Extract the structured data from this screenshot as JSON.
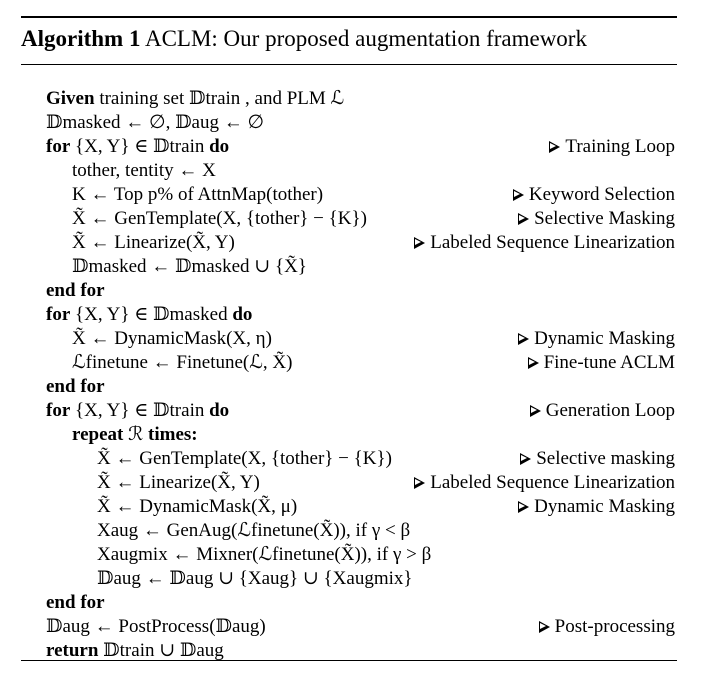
{
  "algorithm": {
    "label": "Algorithm 1",
    "title": "ACLM: Our proposed augmentation framework"
  },
  "lines": [
    {
      "code": "Given training set 𝔻train , and PLM ℒ",
      "comment": ""
    },
    {
      "code": "𝔻masked ← ∅, 𝔻aug ← ∅",
      "comment": ""
    },
    {
      "code": "for {X, Y} ∈ 𝔻train do",
      "comment": "Training Loop"
    },
    {
      "code": "tother, tentity ← X",
      "comment": ""
    },
    {
      "code": "K ← Top p% of AttnMap(tother)",
      "comment": "Keyword Selection"
    },
    {
      "code": "X̃ ← GenTemplate(X, {tother} − {K})",
      "comment": "Selective Masking"
    },
    {
      "code": "X̃ ← Linearize(X̃, Y)",
      "comment": "Labeled Sequence Linearization"
    },
    {
      "code": "𝔻masked ← 𝔻masked ∪ {X̃}",
      "comment": ""
    },
    {
      "code": "end for",
      "comment": ""
    },
    {
      "code": "for {X, Y} ∈ 𝔻masked do",
      "comment": ""
    },
    {
      "code": "X̃ ← DynamicMask(X, η)",
      "comment": "Dynamic Masking"
    },
    {
      "code": "ℒfinetune ← Finetune(ℒ, X̃)",
      "comment": "Fine-tune ACLM"
    },
    {
      "code": "end for",
      "comment": ""
    },
    {
      "code": "for {X, Y} ∈ 𝔻train do",
      "comment": "Generation Loop"
    },
    {
      "code": "repeat ℛ times:",
      "comment": ""
    },
    {
      "code": "X̃ ← GenTemplate(X, {tother} − {K})",
      "comment": "Selective masking"
    },
    {
      "code": "X̃ ← Linearize(X̃, Y)",
      "comment": "Labeled Sequence Linearization"
    },
    {
      "code": "X̃ ← DynamicMask(X̃, μ)",
      "comment": "Dynamic Masking"
    },
    {
      "code": "Xaug ← GenAug(ℒfinetune(X̃)), if γ < β",
      "comment": ""
    },
    {
      "code": "Xaugmix ← Mixner(ℒfinetune(X̃)), if γ > β",
      "comment": ""
    },
    {
      "code": "𝔻aug ← 𝔻aug ∪ {Xaug} ∪ {Xaugmix}",
      "comment": ""
    },
    {
      "code": "end for",
      "comment": ""
    },
    {
      "code": "𝔻aug ← PostProcess(𝔻aug)",
      "comment": "Post-processing"
    },
    {
      "code": "return 𝔻train ∪ 𝔻aug",
      "comment": ""
    }
  ]
}
